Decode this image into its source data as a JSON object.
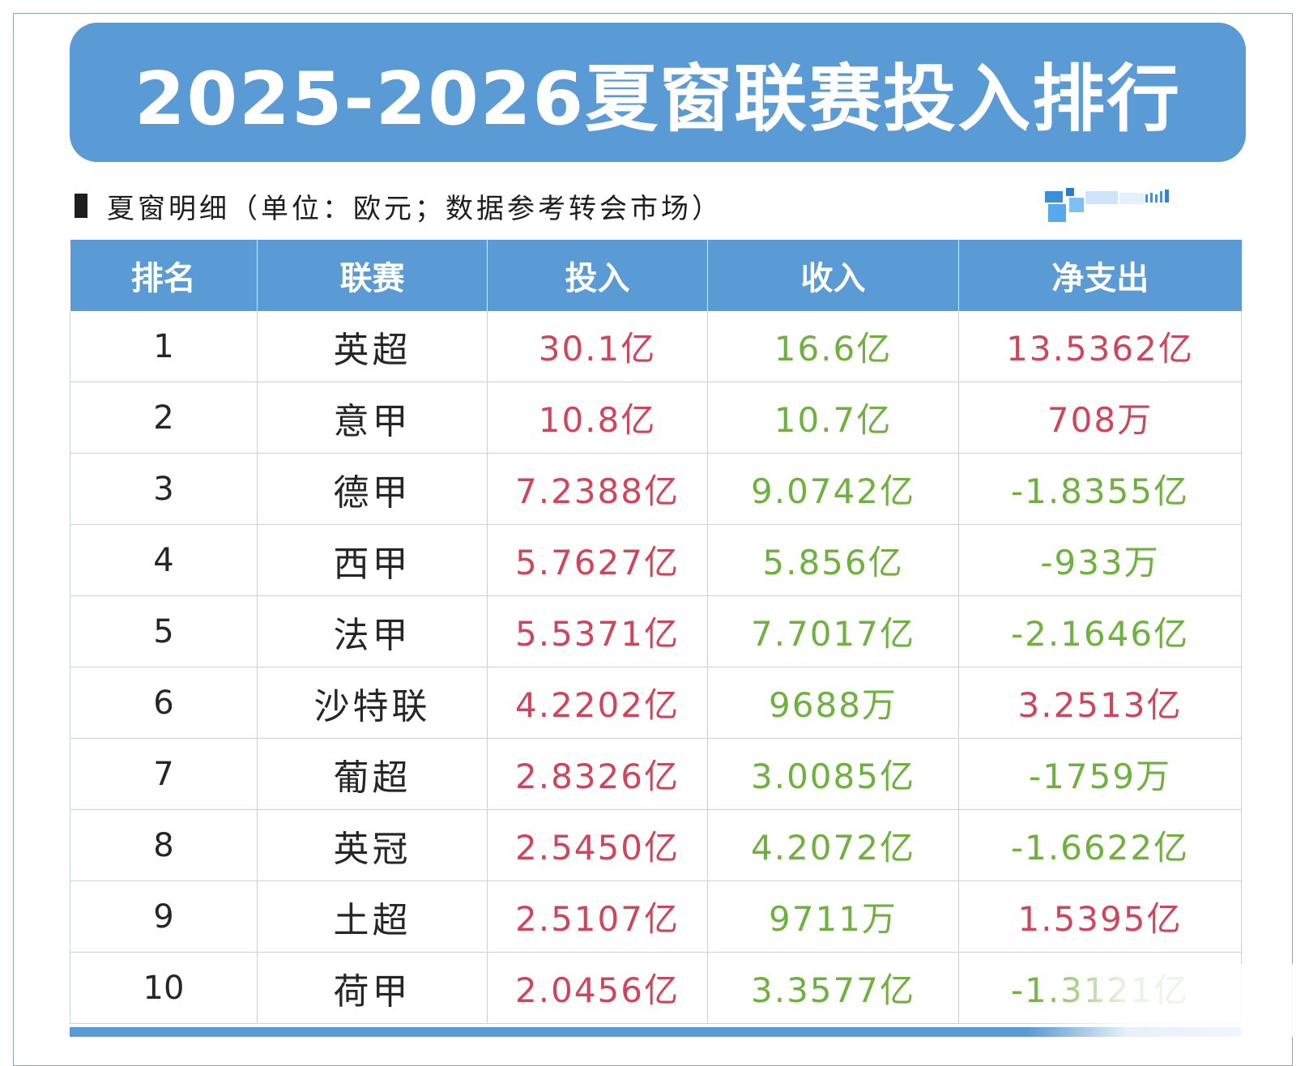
{
  "title": "2025-2026夏窗联赛投入排行",
  "subtitle": "夏窗明细（单位：欧元；数据参考转会市场）",
  "table": {
    "headers": [
      "排名",
      "联赛",
      "投入",
      "收入",
      "净支出"
    ],
    "rows": [
      {
        "rank": "1",
        "league": "英超",
        "spend": "30.1亿",
        "income": "16.6亿",
        "net": "13.5362亿",
        "net_color": "red"
      },
      {
        "rank": "2",
        "league": "意甲",
        "spend": "10.8亿",
        "income": "10.7亿",
        "net": "708万",
        "net_color": "red"
      },
      {
        "rank": "3",
        "league": "德甲",
        "spend": "7.2388亿",
        "income": "9.0742亿",
        "net": "-1.8355亿",
        "net_color": "green"
      },
      {
        "rank": "4",
        "league": "西甲",
        "spend": "5.7627亿",
        "income": "5.856亿",
        "net": "-933万",
        "net_color": "green"
      },
      {
        "rank": "5",
        "league": "法甲",
        "spend": "5.5371亿",
        "income": "7.7017亿",
        "net": "-2.1646亿",
        "net_color": "green"
      },
      {
        "rank": "6",
        "league": "沙特联",
        "spend": "4.2202亿",
        "income": "9688万",
        "net": "3.2513亿",
        "net_color": "red"
      },
      {
        "rank": "7",
        "league": "葡超",
        "spend": "2.8326亿",
        "income": "3.0085亿",
        "net": "-1759万",
        "net_color": "green"
      },
      {
        "rank": "8",
        "league": "英冠",
        "spend": "2.5450亿",
        "income": "4.2072亿",
        "net": "-1.6622亿",
        "net_color": "green"
      },
      {
        "rank": "9",
        "league": "土超",
        "spend": "2.5107亿",
        "income": "9711万",
        "net": "1.5395亿",
        "net_color": "red"
      },
      {
        "rank": "10",
        "league": "荷甲",
        "spend": "2.0456亿",
        "income": "3.3577亿",
        "net": "-1.3121亿",
        "net_color": "green"
      }
    ]
  },
  "colors": {
    "header_blue": "#5b9bd5",
    "spend_red": "#d0455a",
    "income_green": "#6fb13e"
  },
  "icons": [
    "logo-watermark"
  ]
}
